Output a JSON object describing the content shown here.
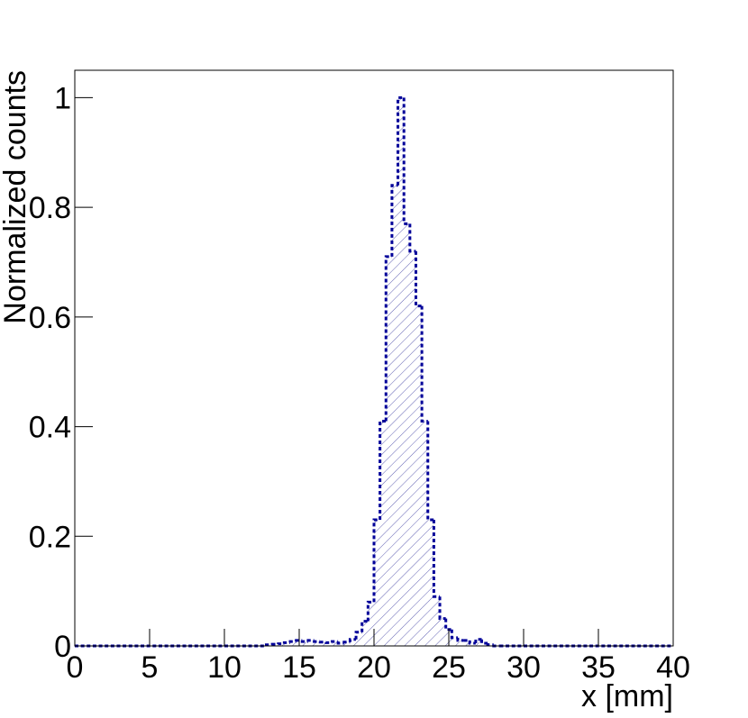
{
  "chart_data": {
    "type": "histogram",
    "xlabel": "x [mm]",
    "ylabel": "Normalized counts",
    "bins": [
      0,
      0.4,
      0.8,
      1.2,
      1.6,
      2,
      2.4,
      2.8,
      3.2,
      3.6,
      4,
      4.4,
      4.8,
      5.2,
      5.6,
      6,
      6.4,
      6.8,
      7.2,
      7.6,
      8,
      8.4,
      8.8,
      9.2,
      9.6,
      10,
      10.4,
      10.8,
      11.2,
      11.6,
      12,
      12.4,
      12.8,
      13.2,
      13.6,
      14,
      14.4,
      14.8,
      15.2,
      15.6,
      16,
      16.4,
      16.8,
      17.2,
      17.6,
      18,
      18.4,
      18.8,
      19.2,
      19.6,
      20,
      20.4,
      20.8,
      21.2,
      21.6,
      22,
      22.4,
      22.8,
      23.2,
      23.6,
      24,
      24.4,
      24.8,
      25.2,
      25.6,
      26,
      26.4,
      26.8,
      27.2,
      27.6,
      28,
      28.4,
      28.8,
      29.2,
      29.6,
      30,
      30.4,
      30.8,
      31.2,
      31.6,
      32,
      32.4,
      32.8,
      33.2,
      33.6,
      34,
      34.4,
      34.8,
      35.2,
      35.6,
      36,
      36.4,
      36.8,
      37.2,
      37.6,
      38,
      38.4,
      38.8,
      39.2,
      39.6,
      40
    ],
    "values": [
      0,
      0,
      0,
      0,
      0,
      0,
      0,
      0,
      0,
      0,
      0,
      0,
      0,
      0,
      0,
      0,
      0,
      0,
      0,
      0,
      0,
      0,
      0,
      0,
      0,
      0,
      0,
      0,
      0,
      0,
      0,
      0,
      0.002,
      0.003,
      0.004,
      0.006,
      0.008,
      0.01,
      0.008,
      0.01,
      0.008,
      0.007,
      0.006,
      0.008,
      0.005,
      0.007,
      0.012,
      0.025,
      0.045,
      0.08,
      0.23,
      0.41,
      0.71,
      0.84,
      1.0,
      0.77,
      0.72,
      0.62,
      0.41,
      0.23,
      0.09,
      0.05,
      0.03,
      0.015,
      0.01,
      0.01,
      0.005,
      0.012,
      0.005,
      0.002,
      0,
      0,
      0,
      0,
      0,
      0,
      0,
      0,
      0,
      0,
      0,
      0,
      0,
      0,
      0,
      0,
      0,
      0,
      0,
      0,
      0,
      0,
      0,
      0,
      0,
      0,
      0,
      0,
      0,
      0
    ],
    "color": "#000099",
    "xlim": [
      0,
      40
    ],
    "ylim": [
      0,
      1.05
    ],
    "xticks": [
      0,
      5,
      10,
      15,
      20,
      25,
      30,
      35,
      40
    ],
    "yticks": [
      0,
      0.2,
      0.4,
      0.6,
      0.8,
      1
    ]
  }
}
